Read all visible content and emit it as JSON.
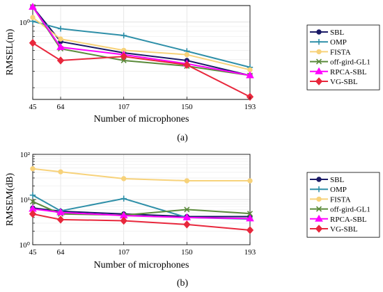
{
  "chart_data": [
    {
      "panel_label": "(a)",
      "type": "line",
      "x": [
        45,
        64,
        107,
        150,
        193
      ],
      "x_tick_labels": [
        "45",
        "64",
        "107",
        "150",
        "193"
      ],
      "xlabel": "Number of microphones",
      "ylabel": "RMSEL(m)",
      "y_scale": "log",
      "ylim": [
        0.15,
        1.5
      ],
      "y_tick_labels": [
        "10⁰"
      ],
      "grid": true,
      "legend_position": "right",
      "series": [
        {
          "name": "SBL",
          "color": "#1a1a66",
          "marker": "circle",
          "values": [
            1.45,
            0.62,
            0.47,
            0.39,
            0.27
          ]
        },
        {
          "name": "OMP",
          "color": "#2e8fa8",
          "marker": "plus",
          "values": [
            1.02,
            0.85,
            0.72,
            0.49,
            0.33
          ]
        },
        {
          "name": "FISTA",
          "color": "#f7d27a",
          "marker": "circle",
          "values": [
            1.12,
            0.66,
            0.5,
            0.45,
            0.31
          ]
        },
        {
          "name": "off-gird-GL1",
          "color": "#5a8a3a",
          "marker": "x",
          "values": [
            1.45,
            0.52,
            0.39,
            0.34,
            0.27
          ]
        },
        {
          "name": "RPCA-SBL",
          "color": "#ff00ff",
          "marker": "triangle",
          "values": [
            1.45,
            0.54,
            0.45,
            0.36,
            0.27
          ]
        },
        {
          "name": "VG-SBL",
          "color": "#e8273c",
          "marker": "diamond",
          "values": [
            0.6,
            0.39,
            0.43,
            0.35,
            0.16
          ]
        }
      ]
    },
    {
      "panel_label": "(b)",
      "type": "line",
      "x": [
        45,
        64,
        107,
        150,
        193
      ],
      "x_tick_labels": [
        "45",
        "64",
        "107",
        "150",
        "193"
      ],
      "xlabel": "Number of microphones",
      "ylabel": "RMSEM(dB)",
      "y_scale": "log",
      "ylim": [
        1,
        100
      ],
      "y_tick_labels": [
        "10⁰",
        "10¹",
        "10²"
      ],
      "grid": true,
      "legend_position": "right",
      "series": [
        {
          "name": "SBL",
          "color": "#1a1a66",
          "marker": "circle",
          "values": [
            6.5,
            5.5,
            4.8,
            4.2,
            4.2
          ]
        },
        {
          "name": "OMP",
          "color": "#2e8fa8",
          "marker": "plus",
          "values": [
            12.5,
            5.6,
            10.5,
            4.0,
            3.7
          ]
        },
        {
          "name": "FISTA",
          "color": "#f7d27a",
          "marker": "circle",
          "values": [
            48,
            41,
            29,
            26,
            26
          ]
        },
        {
          "name": "off-gird-GL1",
          "color": "#5a8a3a",
          "marker": "x",
          "values": [
            9.0,
            4.8,
            4.5,
            6.0,
            4.9
          ]
        },
        {
          "name": "RPCA-SBL",
          "color": "#ff00ff",
          "marker": "triangle",
          "values": [
            6.2,
            5.2,
            4.4,
            4.0,
            3.8
          ]
        },
        {
          "name": "VG-SBL",
          "color": "#e8273c",
          "marker": "diamond",
          "values": [
            4.8,
            3.6,
            3.4,
            2.8,
            2.1
          ]
        }
      ]
    }
  ]
}
